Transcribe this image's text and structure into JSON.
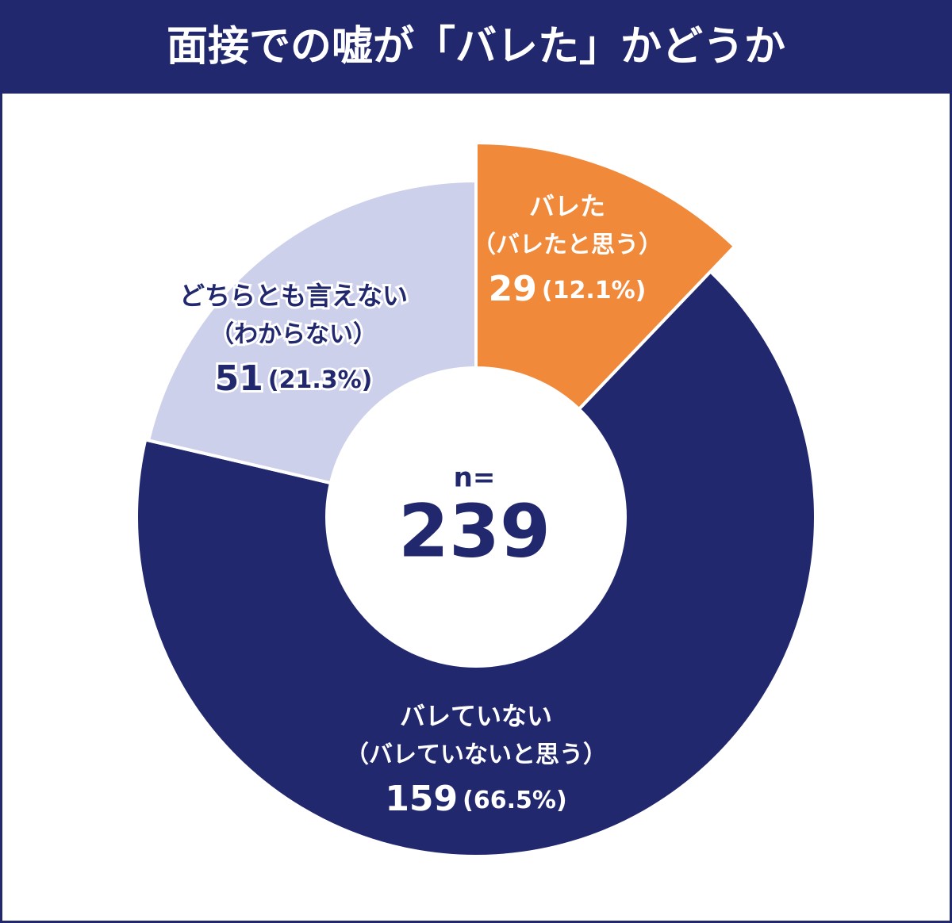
{
  "chart_data": {
    "type": "donut",
    "title": "面接での嘘が「バレた」かどうか",
    "categories": [
      "バレた",
      "バレていない",
      "どちらとも言えない"
    ],
    "subcategories": [
      "（バレたと思う）",
      "（バレていないと思う）",
      "（わからない）"
    ],
    "values": [
      29,
      159,
      51
    ],
    "percent_labels": [
      "(12.1%)",
      "(66.5%)",
      "(21.3%)"
    ],
    "colors": [
      "#f0893a",
      "#22286e",
      "#cdd0ea"
    ],
    "label_colors": [
      "#ffffff",
      "#ffffff",
      "#22286e"
    ],
    "center_label": "n=",
    "total": 239
  }
}
